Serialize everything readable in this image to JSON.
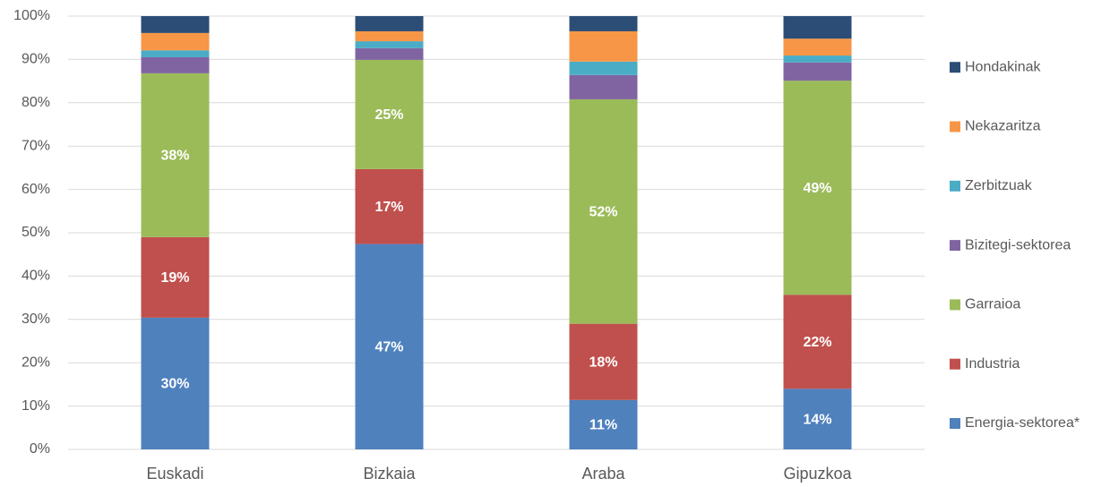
{
  "chart_data": {
    "type": "stacked_bar",
    "categories": [
      "Euskadi",
      "Bizkaia",
      "Araba",
      "Gipuzkoa"
    ],
    "series": [
      {
        "name": "Energia-sektorea*",
        "color": "#4f81bd",
        "values": [
          30.4,
          47.4,
          11.4,
          14.0
        ],
        "value_labels": [
          "30%",
          "47%",
          "11%",
          "14%"
        ]
      },
      {
        "name": "Industria",
        "color": "#c0504d",
        "values": [
          18.6,
          17.3,
          17.6,
          21.7
        ],
        "value_labels": [
          "19%",
          "17%",
          "18%",
          "22%"
        ]
      },
      {
        "name": "Garraioa",
        "color": "#9bbb59",
        "values": [
          37.8,
          25.2,
          51.8,
          49.4
        ],
        "value_labels": [
          "38%",
          "25%",
          "52%",
          "49%"
        ]
      },
      {
        "name": "Bizitegi-sektorea",
        "color": "#8064a2",
        "values": [
          3.7,
          2.7,
          5.6,
          4.2
        ]
      },
      {
        "name": "Zerbitzuak",
        "color": "#4bacc6",
        "values": [
          1.6,
          1.6,
          3.1,
          1.6
        ]
      },
      {
        "name": "Nekazaritza",
        "color": "#f79646",
        "values": [
          4.0,
          2.3,
          7.0,
          3.9
        ]
      },
      {
        "name": "Hondakinak",
        "color": "#2c4d75",
        "values": [
          3.9,
          3.5,
          3.5,
          5.2
        ]
      }
    ],
    "ylim": [
      0,
      100
    ],
    "yticks": [
      {
        "value": 0,
        "label": "0%"
      },
      {
        "value": 10,
        "label": "10%"
      },
      {
        "value": 20,
        "label": "20%"
      },
      {
        "value": 30,
        "label": "30%"
      },
      {
        "value": 40,
        "label": "40%"
      },
      {
        "value": 50,
        "label": "50%"
      },
      {
        "value": 60,
        "label": "60%"
      },
      {
        "value": 70,
        "label": "70%"
      },
      {
        "value": 80,
        "label": "80%"
      },
      {
        "value": 90,
        "label": "90%"
      },
      {
        "value": 100,
        "label": "100%"
      }
    ],
    "grid": true,
    "legend": "right"
  }
}
